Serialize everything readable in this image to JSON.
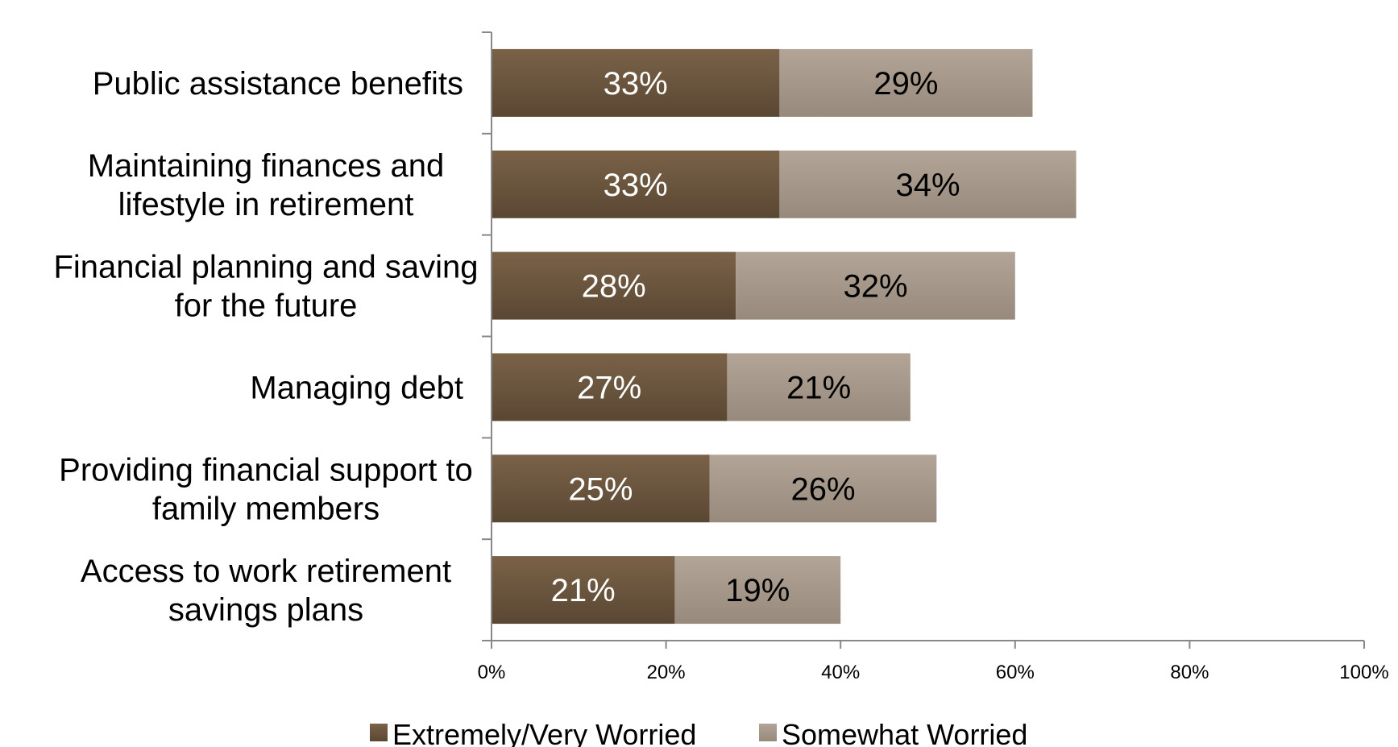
{
  "chart_data": {
    "type": "bar",
    "orientation": "horizontal",
    "stacked": true,
    "categories": [
      "Public assistance benefits",
      "Maintaining finances and lifestyle in retirement",
      "Financial planning and saving for the future",
      "Managing debt",
      "Providing financial support to family members",
      "Access to work retirement savings plans"
    ],
    "category_lines": [
      [
        "Public assistance benefits"
      ],
      [
        "Maintaining finances and",
        "lifestyle in retirement"
      ],
      [
        "Financial planning and saving",
        "for the future"
      ],
      [
        "Managing debt"
      ],
      [
        "Providing financial support to",
        "family members"
      ],
      [
        "Access to work retirement",
        "savings plans"
      ]
    ],
    "series": [
      {
        "name": "Extremely/Very Worried",
        "values": [
          33,
          33,
          28,
          27,
          25,
          21
        ],
        "labels": [
          "33%",
          "33%",
          "28%",
          "27%",
          "25%",
          "21%"
        ],
        "color": "#6b5641",
        "label_color": "#ffffff"
      },
      {
        "name": "Somewhat Worried",
        "values": [
          29,
          34,
          32,
          21,
          26,
          19
        ],
        "labels": [
          "29%",
          "34%",
          "32%",
          "21%",
          "26%",
          "19%"
        ],
        "color": "#a59889",
        "label_color": "#000000"
      }
    ],
    "x_ticks": [
      "0%",
      "20%",
      "40%",
      "60%",
      "80%",
      "100%"
    ],
    "xlim": [
      0,
      100
    ],
    "title": "",
    "xlabel": "",
    "ylabel": "",
    "grid": false,
    "legend_position": "bottom"
  }
}
